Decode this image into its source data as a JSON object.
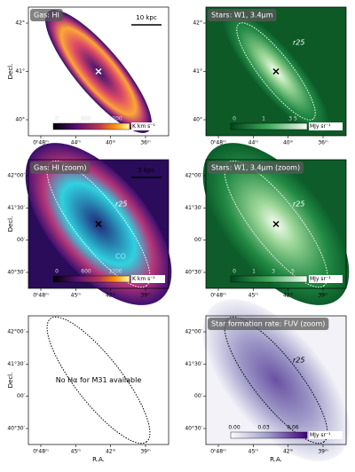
{
  "panels": [
    {
      "title": "Gas: HI",
      "scale_bar": "10 kpc",
      "y_label": "Decl.",
      "y_ticks": [
        "42°",
        "41°",
        "40°"
      ],
      "x_ticks": [
        "0ʰ48ᵐ",
        "44ᵐ",
        "40ᵐ",
        "36ᵐ"
      ],
      "colorbar_ticks": [
        "0",
        "600",
        "1200"
      ],
      "colorbar_unit": "K km s⁻¹"
    },
    {
      "title": "Stars: W1, 3.4μm",
      "annotation": "r25",
      "y_ticks": [
        "42°",
        "41°",
        "40°"
      ],
      "x_ticks": [
        "0ʰ48ᵐ",
        "44ᵐ",
        "40ᵐ",
        "36ᵐ"
      ],
      "colorbar_ticks": [
        "0",
        "1",
        "3 5"
      ],
      "colorbar_unit": "MJy sr⁻¹"
    },
    {
      "title": "Gas: HI (zoom)",
      "scale_bar": "5 kpc",
      "annotation": "r25",
      "annotation_2": "CO",
      "y_label": "Decl.",
      "y_ticks": [
        "42°00′",
        "41°30′",
        "00′",
        "40°30′"
      ],
      "x_ticks": [
        "0ʰ48ᵐ",
        "45ᵐ",
        "42ᵐ",
        "39ᵐ"
      ],
      "colorbar_ticks": [
        "0",
        "600",
        "1200"
      ],
      "colorbar_unit": "K km s⁻¹"
    },
    {
      "title": "Stars: W1, 3.4μm (zoom)",
      "annotation": "r25",
      "y_ticks": [
        "42°00′",
        "41°30′",
        "00′",
        "40°30′"
      ],
      "x_ticks": [
        "0ʰ48ᵐ",
        "45ᵐ",
        "42ᵐ",
        "39ᵐ"
      ],
      "colorbar_ticks": [
        "0",
        "1",
        "3",
        "5"
      ],
      "colorbar_unit": "MJy sr⁻¹"
    },
    {
      "message": "No Hα for M31 available",
      "y_label": "Decl.",
      "x_label": "R.A.",
      "y_ticks": [
        "42°00′",
        "41°30′",
        "00′",
        "40°30′"
      ],
      "x_ticks": [
        "0ʰ48ᵐ",
        "45ᵐ",
        "42ᵐ",
        "39ᵐ"
      ]
    },
    {
      "title": "Star formation rate: FUV (zoom)",
      "annotation": "r25",
      "x_label": "R.A.",
      "y_ticks": [
        "42°00′",
        "41°30′",
        "00′",
        "40°30′"
      ],
      "x_ticks": [
        "0ʰ48ᵐ",
        "45ᵐ",
        "42ᵐ",
        "39ᵐ"
      ],
      "colorbar_ticks": [
        "0.00",
        "0.03",
        "0.06"
      ],
      "colorbar_unit": "MJy sr⁻¹"
    }
  ]
}
